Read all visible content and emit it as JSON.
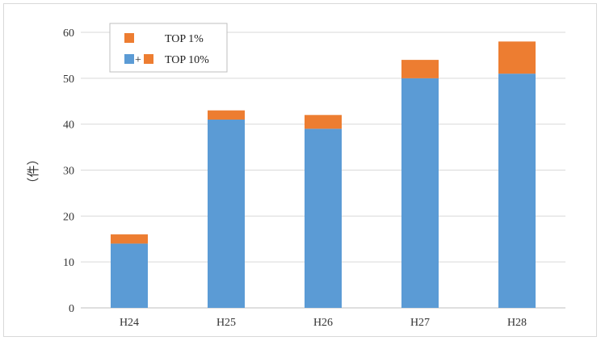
{
  "chart_data": {
    "type": "bar",
    "stacked": true,
    "categories": [
      "H24",
      "H25",
      "H26",
      "H27",
      "H28"
    ],
    "series": [
      {
        "name": "",
        "color": "#5b9bd5",
        "values": [
          14,
          41,
          39,
          50,
          51
        ]
      },
      {
        "name": "TOP 1%",
        "color": "#ed7d31",
        "values": [
          2,
          2,
          3,
          4,
          7
        ]
      }
    ],
    "ylabel": "（件）",
    "ylim": [
      0,
      60
    ],
    "yticks": [
      0,
      10,
      20,
      30,
      40,
      50,
      60
    ],
    "grid": true,
    "legend": {
      "placement": "top-left",
      "entries": [
        {
          "label": "TOP 1%",
          "swatches": [
            "#ed7d31"
          ]
        },
        {
          "label": "TOP 10%",
          "swatches": [
            "#5b9bd5",
            "#ed7d31"
          ],
          "joiner": "+"
        }
      ]
    }
  }
}
